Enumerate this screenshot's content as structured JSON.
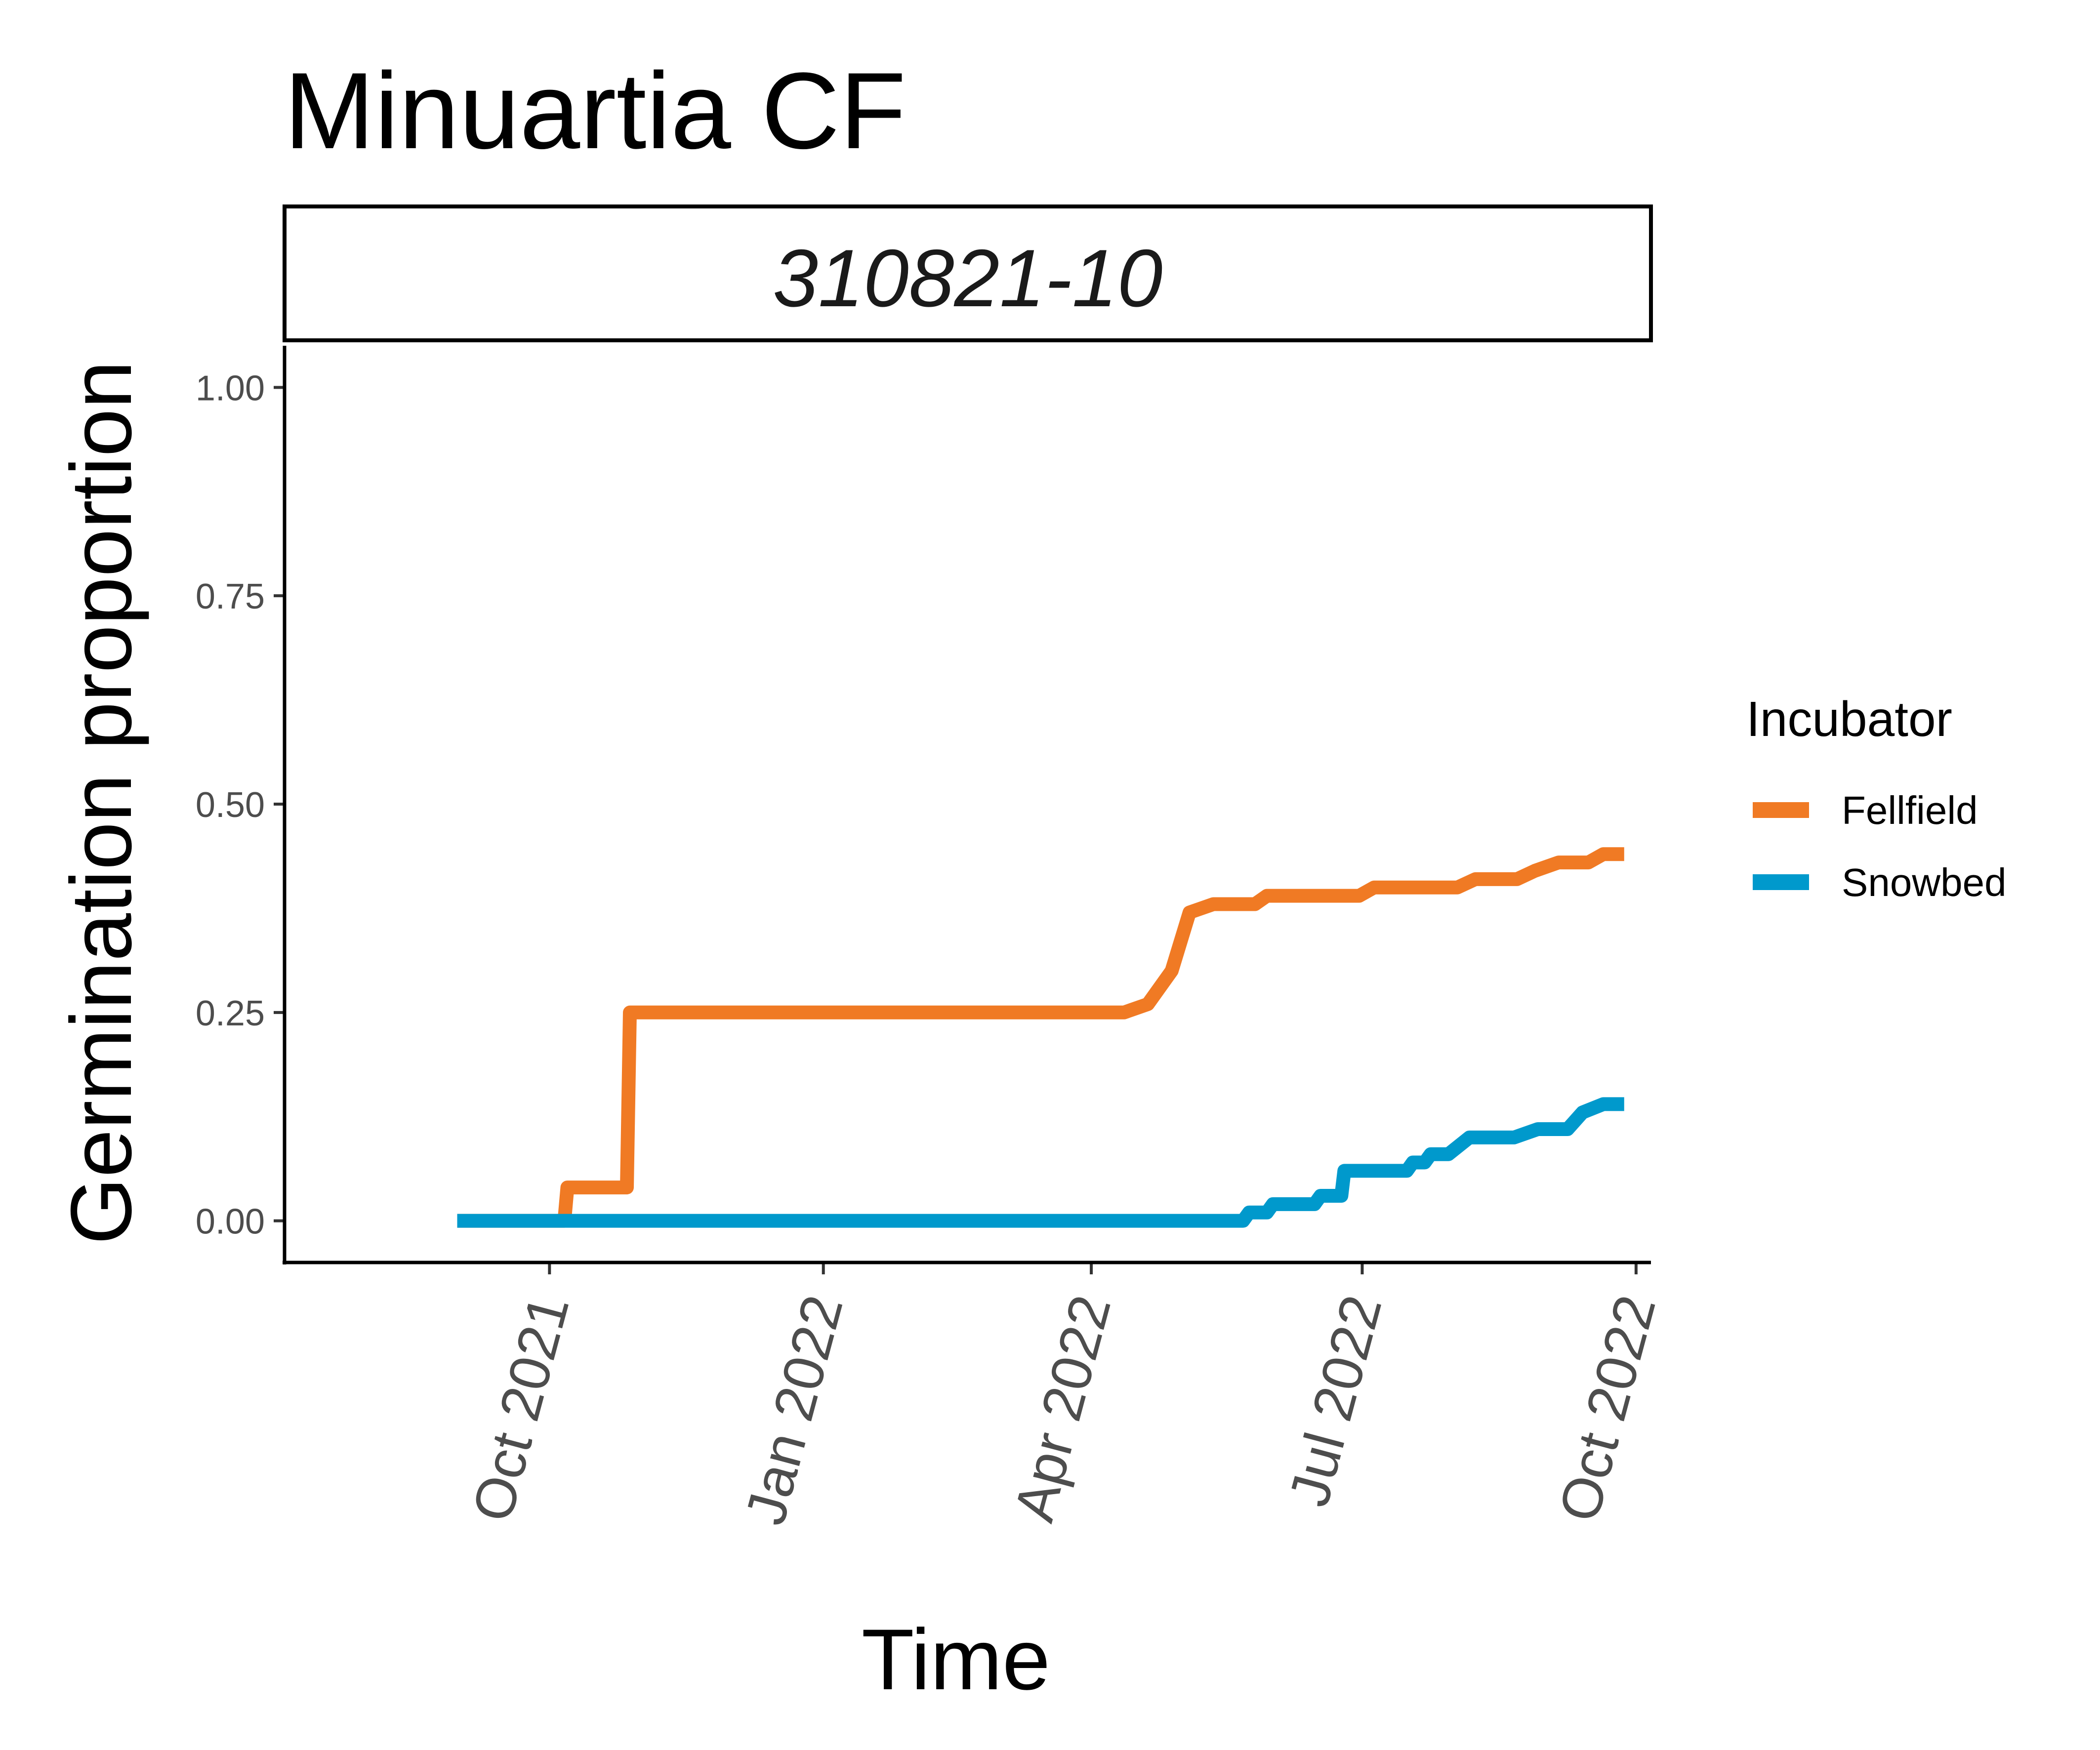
{
  "chart_data": {
    "type": "line",
    "title": "Minuartia CF",
    "facet_label": "310821-10",
    "xlabel": "Time",
    "ylabel": "Germination proportion",
    "x_type": "date",
    "xlim": [
      "2021-07-04",
      "2022-10-06"
    ],
    "ylim": [
      -0.05,
      1.05
    ],
    "x_ticks": [
      {
        "date": "2021-10-01",
        "label": "Oct 2021"
      },
      {
        "date": "2022-01-01",
        "label": "Jan 2022"
      },
      {
        "date": "2022-04-01",
        "label": "Apr 2022"
      },
      {
        "date": "2022-07-01",
        "label": "Jul 2022"
      },
      {
        "date": "2022-10-01",
        "label": "Oct 2022"
      }
    ],
    "y_ticks": [
      {
        "value": 0.0,
        "label": "0.00"
      },
      {
        "value": 0.25,
        "label": "0.25"
      },
      {
        "value": 0.5,
        "label": "0.50"
      },
      {
        "value": 0.75,
        "label": "0.75"
      },
      {
        "value": 1.0,
        "label": "1.00"
      }
    ],
    "grid": false,
    "legend": {
      "title": "Incubator",
      "position": "right"
    },
    "series": [
      {
        "name": "Fellfield",
        "color": "#F07A24",
        "points": [
          [
            "2021-08-31",
            0.0
          ],
          [
            "2021-10-06",
            0.0
          ],
          [
            "2021-10-07",
            0.04
          ],
          [
            "2021-10-27",
            0.04
          ],
          [
            "2021-10-28",
            0.25
          ],
          [
            "2022-04-12",
            0.25
          ],
          [
            "2022-04-20",
            0.26
          ],
          [
            "2022-04-28",
            0.3
          ],
          [
            "2022-05-04",
            0.37
          ],
          [
            "2022-05-12",
            0.38
          ],
          [
            "2022-05-26",
            0.38
          ],
          [
            "2022-05-30",
            0.39
          ],
          [
            "2022-06-30",
            0.39
          ],
          [
            "2022-07-05",
            0.4
          ],
          [
            "2022-08-02",
            0.4
          ],
          [
            "2022-08-08",
            0.41
          ],
          [
            "2022-08-22",
            0.41
          ],
          [
            "2022-08-28",
            0.42
          ],
          [
            "2022-09-05",
            0.43
          ],
          [
            "2022-09-15",
            0.43
          ],
          [
            "2022-09-20",
            0.44
          ],
          [
            "2022-09-27",
            0.44
          ]
        ]
      },
      {
        "name": "Snowbed",
        "color": "#0099CC",
        "points": [
          [
            "2021-08-31",
            0.0
          ],
          [
            "2022-05-22",
            0.0
          ],
          [
            "2022-05-24",
            0.01
          ],
          [
            "2022-05-30",
            0.01
          ],
          [
            "2022-06-01",
            0.02
          ],
          [
            "2022-06-15",
            0.02
          ],
          [
            "2022-06-17",
            0.03
          ],
          [
            "2022-06-24",
            0.03
          ],
          [
            "2022-06-25",
            0.06
          ],
          [
            "2022-07-16",
            0.06
          ],
          [
            "2022-07-18",
            0.07
          ],
          [
            "2022-07-22",
            0.07
          ],
          [
            "2022-07-24",
            0.08
          ],
          [
            "2022-07-30",
            0.08
          ],
          [
            "2022-08-06",
            0.1
          ],
          [
            "2022-08-21",
            0.1
          ],
          [
            "2022-08-29",
            0.11
          ],
          [
            "2022-09-08",
            0.11
          ],
          [
            "2022-09-13",
            0.13
          ],
          [
            "2022-09-20",
            0.14
          ],
          [
            "2022-09-27",
            0.14
          ]
        ]
      }
    ]
  }
}
